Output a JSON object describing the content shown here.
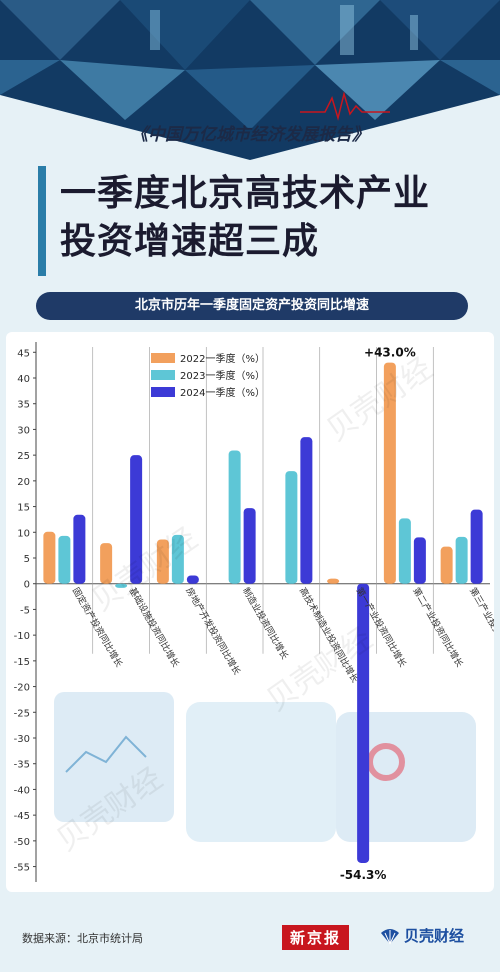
{
  "header": {
    "report_name": "《中国万亿城市经济发展报告》",
    "title_line1": "一季度北京高技术产业",
    "title_line2": "投资增速超三成",
    "chart_heading": "北京市历年一季度固定资产投资同比增速"
  },
  "footer": {
    "source": "数据来源：北京市统计局",
    "brand1": "新京报",
    "brand2": "贝壳财经"
  },
  "watermark": "贝壳财经",
  "colors": {
    "s2022": "#f2a05d",
    "s2023": "#5ec6d6",
    "s2024": "#3c3ad6",
    "brand_red": "#c8161e",
    "navy": "#1f3a67"
  },
  "chart_data": {
    "type": "bar",
    "categories": [
      "固定资产投资同比增长",
      "基础设施投资同比增长",
      "房地产开发投资同比增长",
      "制造业投资同比增长",
      "高技术制造业投资同比增长",
      "第一产业投资同比增长",
      "第二产业投资同比增长",
      "第三产业投资同比增长"
    ],
    "series": [
      {
        "name": "2022一季度（%）",
        "values": [
          10.1,
          7.9,
          8.6,
          0,
          0,
          1.0,
          43.0,
          7.2
        ]
      },
      {
        "name": "2023一季度（%）",
        "values": [
          9.3,
          -0.8,
          9.5,
          25.9,
          21.9,
          0,
          12.7,
          9.1
        ]
      },
      {
        "name": "2024一季度（%）",
        "values": [
          13.4,
          25.0,
          1.6,
          14.7,
          28.5,
          -54.3,
          9.0,
          14.4
        ]
      }
    ],
    "ylim": [
      -58,
      47
    ],
    "yticks": [
      45,
      40,
      35,
      30,
      25,
      20,
      15,
      10,
      5,
      0,
      -5,
      -10,
      -15,
      -20,
      -25,
      -30,
      -35,
      -40,
      -45,
      -50,
      -55
    ],
    "annotations": [
      {
        "text": "+43.0%"
      },
      {
        "text": "-54.3%"
      }
    ],
    "legend": "top-left"
  }
}
